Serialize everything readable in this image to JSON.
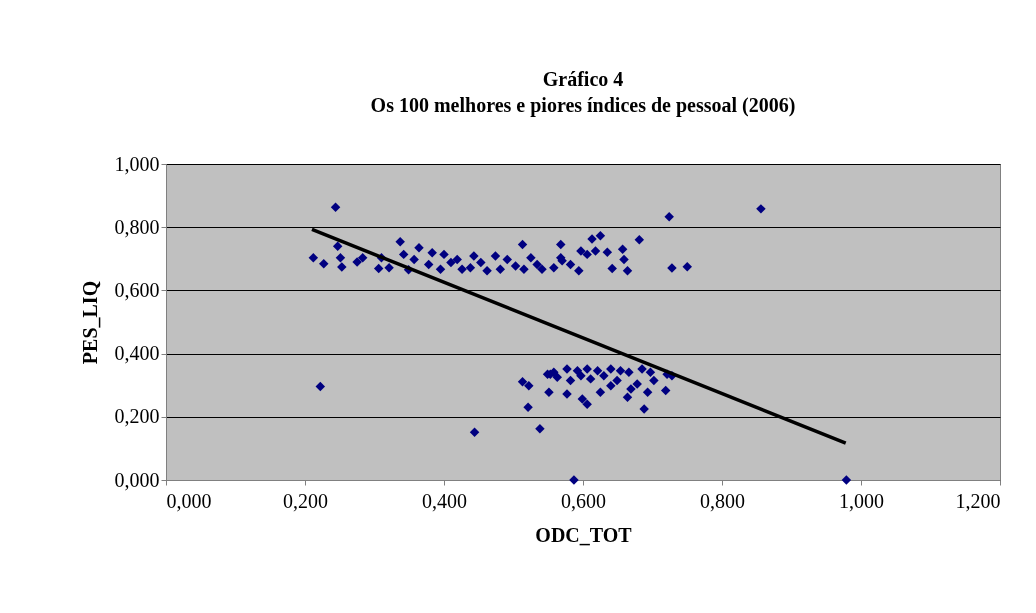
{
  "chart_data": {
    "type": "scatter",
    "title": "Gráfico 4",
    "subtitle": "Os 100 melhores e piores índices de pessoal (2006)",
    "xlabel": "ODC_TOT",
    "ylabel": "PES_LIQ",
    "xlim": [
      0,
      1.2
    ],
    "ylim": [
      0,
      1.0
    ],
    "xticks": [
      {
        "value": 0,
        "label": "0,000"
      },
      {
        "value": 0.2,
        "label": "0,200"
      },
      {
        "value": 0.4,
        "label": "0,400"
      },
      {
        "value": 0.6,
        "label": "0,600"
      },
      {
        "value": 0.8,
        "label": "0,800"
      },
      {
        "value": 1.0,
        "label": "1,000"
      },
      {
        "value": 1.2,
        "label": "1,200"
      }
    ],
    "yticks": [
      {
        "value": 0,
        "label": "0,000"
      },
      {
        "value": 0.2,
        "label": "0,200"
      },
      {
        "value": 0.4,
        "label": "0,400"
      },
      {
        "value": 0.6,
        "label": "0,600"
      },
      {
        "value": 0.8,
        "label": "0,800"
      },
      {
        "value": 1.0,
        "label": "1,000"
      }
    ],
    "grid": "y",
    "series": [
      {
        "type": "scatter",
        "color": "#000080",
        "marker": "diamond",
        "x": [
          0.244,
          0.212,
          0.227,
          0.247,
          0.251,
          0.253,
          0.275,
          0.283,
          0.306,
          0.31,
          0.321,
          0.337,
          0.342,
          0.349,
          0.364,
          0.357,
          0.383,
          0.378,
          0.4,
          0.395,
          0.41,
          0.419,
          0.426,
          0.443,
          0.438,
          0.453,
          0.462,
          0.474,
          0.481,
          0.491,
          0.503,
          0.513,
          0.515,
          0.525,
          0.534,
          0.541,
          0.558,
          0.568,
          0.568,
          0.582,
          0.594,
          0.597,
          0.606,
          0.613,
          0.625,
          0.618,
          0.635,
          0.642,
          0.657,
          0.659,
          0.664,
          0.681,
          0.724,
          0.856,
          0.728,
          0.75,
          0.57,
          0.222,
          0.444,
          0.513,
          0.522,
          0.521,
          0.538,
          0.551,
          0.553,
          0.577,
          0.549,
          0.558,
          0.577,
          0.592,
          0.606,
          0.621,
          0.64,
          0.654,
          0.666,
          0.685,
          0.697,
          0.721,
          0.728,
          0.702,
          0.719,
          0.688,
          0.693,
          0.664,
          0.669,
          0.606,
          0.599,
          0.625,
          0.64,
          0.582,
          0.611,
          0.649,
          0.678,
          0.63,
          0.597,
          0.563,
          0.587,
          0.979
        ],
        "values": [
          0.863,
          0.703,
          0.684,
          0.74,
          0.703,
          0.674,
          0.69,
          0.703,
          0.669,
          0.703,
          0.672,
          0.754,
          0.714,
          0.665,
          0.735,
          0.698,
          0.719,
          0.682,
          0.714,
          0.667,
          0.688,
          0.698,
          0.667,
          0.709,
          0.672,
          0.688,
          0.662,
          0.709,
          0.667,
          0.698,
          0.677,
          0.745,
          0.667,
          0.703,
          0.682,
          0.667,
          0.672,
          0.745,
          0.703,
          0.682,
          0.662,
          0.725,
          0.714,
          0.763,
          0.773,
          0.725,
          0.721,
          0.669,
          0.73,
          0.698,
          0.662,
          0.76,
          0.833,
          0.858,
          0.671,
          0.675,
          0.694,
          0.296,
          0.151,
          0.311,
          0.298,
          0.23,
          0.162,
          0.278,
          0.335,
          0.272,
          0.335,
          0.341,
          0.351,
          0.346,
          0.351,
          0.346,
          0.351,
          0.346,
          0.341,
          0.351,
          0.341,
          0.335,
          0.33,
          0.315,
          0.283,
          0.225,
          0.278,
          0.262,
          0.288,
          0.24,
          0.256,
          0.278,
          0.298,
          0.315,
          0.32,
          0.315,
          0.304,
          0.33,
          0.33,
          0.325,
          0.0,
          0.0
        ]
      },
      {
        "type": "line",
        "color": "#000000",
        "marker": "none",
        "line_style": "solid",
        "x": [
          0.21,
          0.978
        ],
        "values": [
          0.793,
          0.117
        ]
      }
    ]
  }
}
